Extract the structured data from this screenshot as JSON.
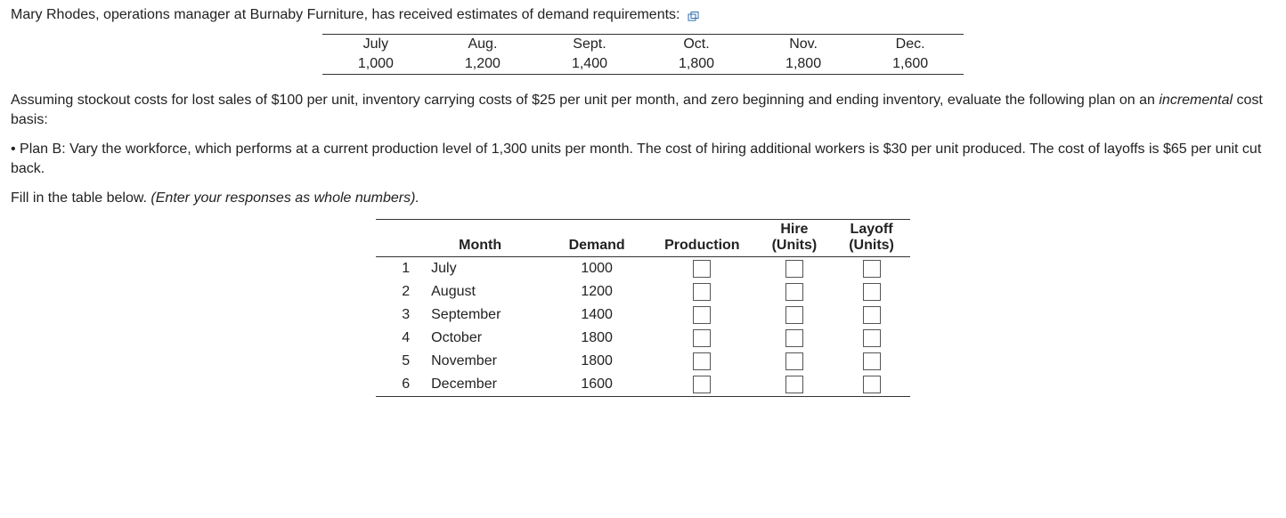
{
  "intro_text": "Mary Rhodes, operations manager at Burnaby Furniture, has received estimates of demand requirements:",
  "demand_summary": {
    "months": [
      "July",
      "Aug.",
      "Sept.",
      "Oct.",
      "Nov.",
      "Dec."
    ],
    "values": [
      "1,000",
      "1,200",
      "1,400",
      "1,800",
      "1,800",
      "1,600"
    ]
  },
  "assumption_text_1": "Assuming stockout costs for lost sales of $100 per unit, inventory carrying costs of $25 per unit per month, and zero beginning and ending inventory, evaluate the following plan on an ",
  "assumption_italic": "incremental",
  "assumption_text_2": " cost basis:",
  "plan_bullet": "• Plan B: Vary the workforce, which performs at a current production level of 1,300 units per month. The cost of hiring additional workers is $30 per unit produced. The cost of layoffs is $65 per unit cut back.",
  "fill_text_1": "Fill in the table below. ",
  "fill_italic": "(Enter your responses as whole numbers).",
  "plan_table": {
    "headers": {
      "blank": "",
      "month": "Month",
      "demand": "Demand",
      "production": "Production",
      "hire_line1": "Hire",
      "hire_line2": "(Units)",
      "layoff_line1": "Layoff",
      "layoff_line2": "(Units)"
    },
    "rows": [
      {
        "n": "1",
        "month": "July",
        "demand": "1000"
      },
      {
        "n": "2",
        "month": "August",
        "demand": "1200"
      },
      {
        "n": "3",
        "month": "September",
        "demand": "1400"
      },
      {
        "n": "4",
        "month": "October",
        "demand": "1800"
      },
      {
        "n": "5",
        "month": "November",
        "demand": "1800"
      },
      {
        "n": "6",
        "month": "December",
        "demand": "1600"
      }
    ]
  }
}
